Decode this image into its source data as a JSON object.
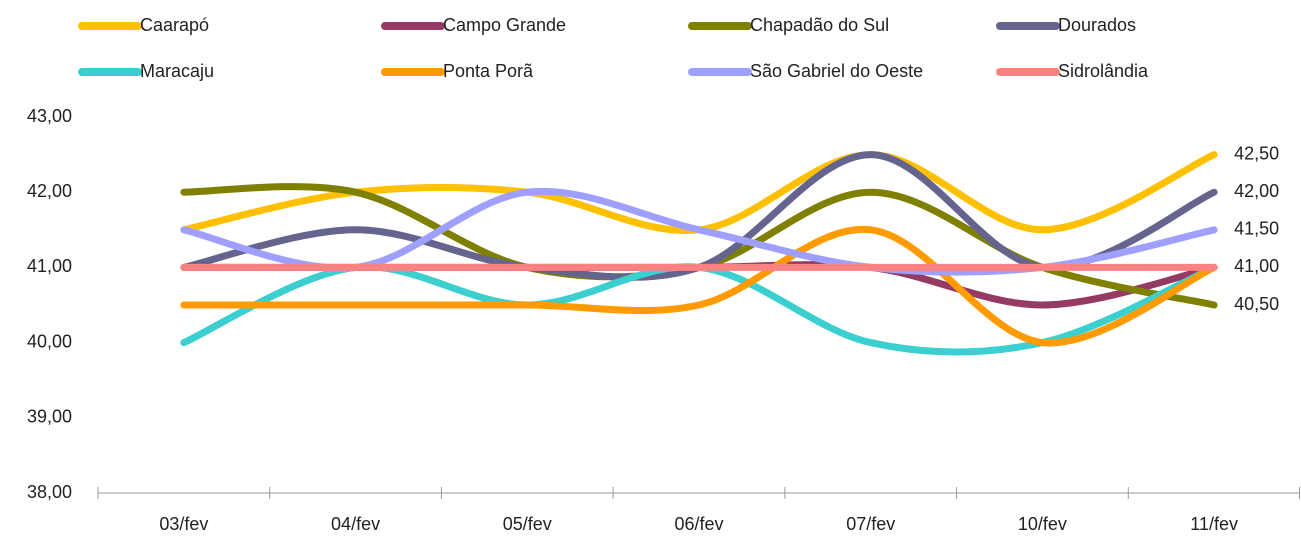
{
  "chart_data": {
    "type": "line",
    "categories": [
      "03/fev",
      "04/fev",
      "05/fev",
      "06/fev",
      "07/fev",
      "10/fev",
      "11/fev"
    ],
    "series": [
      {
        "name": "Caarapó",
        "color": "#ffc000",
        "values": [
          41.5,
          42,
          42,
          41.5,
          42.5,
          41.5,
          42.5
        ],
        "value_labels": [
          null,
          null,
          null,
          null,
          null,
          null,
          "42,50"
        ]
      },
      {
        "name": "Campo Grande",
        "color": "#953a62",
        "values": [
          41,
          41,
          41,
          41,
          41,
          40.5,
          41
        ]
      },
      {
        "name": "Chapadão do Sul",
        "color": "#7f7f00",
        "values": [
          42,
          42,
          41,
          41,
          42,
          41,
          40.5
        ],
        "value_labels": [
          null,
          null,
          null,
          null,
          null,
          null,
          "40,50"
        ]
      },
      {
        "name": "Dourados",
        "color": "#64648f",
        "values": [
          41,
          41.5,
          41,
          41,
          42.5,
          41,
          42
        ],
        "value_labels": [
          null,
          null,
          null,
          null,
          null,
          null,
          "42,00"
        ]
      },
      {
        "name": "Maracaju",
        "color": "#3ccfcf",
        "values": [
          40,
          41,
          40.5,
          41,
          40,
          40,
          41
        ]
      },
      {
        "name": "Ponta Porã",
        "color": "#ff9a00",
        "values": [
          40.5,
          40.5,
          40.5,
          40.5,
          41.5,
          40,
          41
        ]
      },
      {
        "name": "São Gabriel do Oeste",
        "color": "#9f9fff",
        "values": [
          41.5,
          41,
          42,
          41.5,
          41,
          41,
          41.5
        ],
        "value_labels": [
          null,
          null,
          null,
          null,
          null,
          null,
          "41,50"
        ]
      },
      {
        "name": "Sidrolândia",
        "color": "#ff8282",
        "values": [
          41,
          41,
          41,
          41,
          41,
          41,
          41
        ],
        "value_labels": [
          null,
          null,
          null,
          null,
          null,
          null,
          "41,00"
        ]
      }
    ],
    "ylim": [
      38,
      43
    ],
    "yticks": [
      {
        "value": 38,
        "label": "38,00"
      },
      {
        "value": 39,
        "label": "39,00"
      },
      {
        "value": 40,
        "label": "40,00"
      },
      {
        "value": 41,
        "label": "41,00"
      },
      {
        "value": 42,
        "label": "42,00"
      },
      {
        "value": 43,
        "label": "43,00"
      }
    ],
    "legend": "top",
    "smooth": true,
    "grid": false
  }
}
